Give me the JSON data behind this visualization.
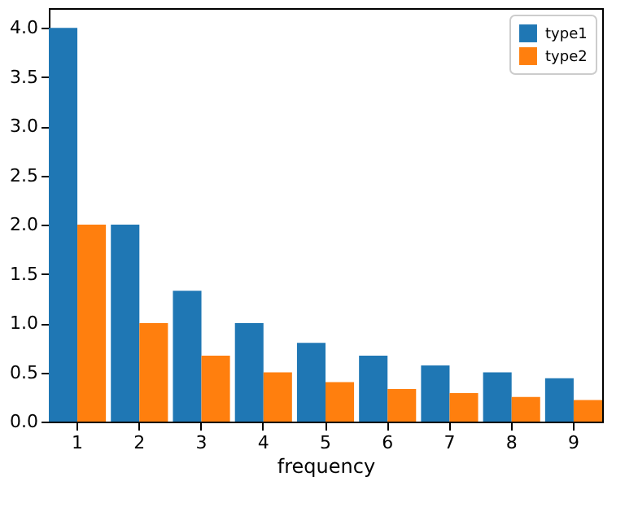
{
  "chart_data": {
    "type": "bar",
    "xlabel": "frequency",
    "categories": [
      "1",
      "2",
      "3",
      "4",
      "5",
      "6",
      "7",
      "8",
      "9"
    ],
    "series": [
      {
        "name": "type1",
        "color": "#1f77b4",
        "values": [
          4,
          2,
          1.33,
          1,
          0.8,
          0.67,
          0.57,
          0.5,
          0.44
        ]
      },
      {
        "name": "type2",
        "color": "#ff7f0e",
        "values": [
          2,
          1,
          0.67,
          0.5,
          0.4,
          0.33,
          0.29,
          0.25,
          0.22
        ]
      }
    ],
    "ylim": [
      0,
      4.2
    ],
    "yticks": [
      {
        "value": 0,
        "label": "0.0"
      },
      {
        "value": 0.5,
        "label": "0.5"
      },
      {
        "value": 1,
        "label": "1.0"
      },
      {
        "value": 1.5,
        "label": "1.5"
      },
      {
        "value": 2,
        "label": "2.0"
      },
      {
        "value": 2.5,
        "label": "2.5"
      },
      {
        "value": 3,
        "label": "3.0"
      },
      {
        "value": 3.5,
        "label": "3.5"
      },
      {
        "value": 4,
        "label": "4.0"
      }
    ],
    "grid": false,
    "legend": "top right"
  }
}
